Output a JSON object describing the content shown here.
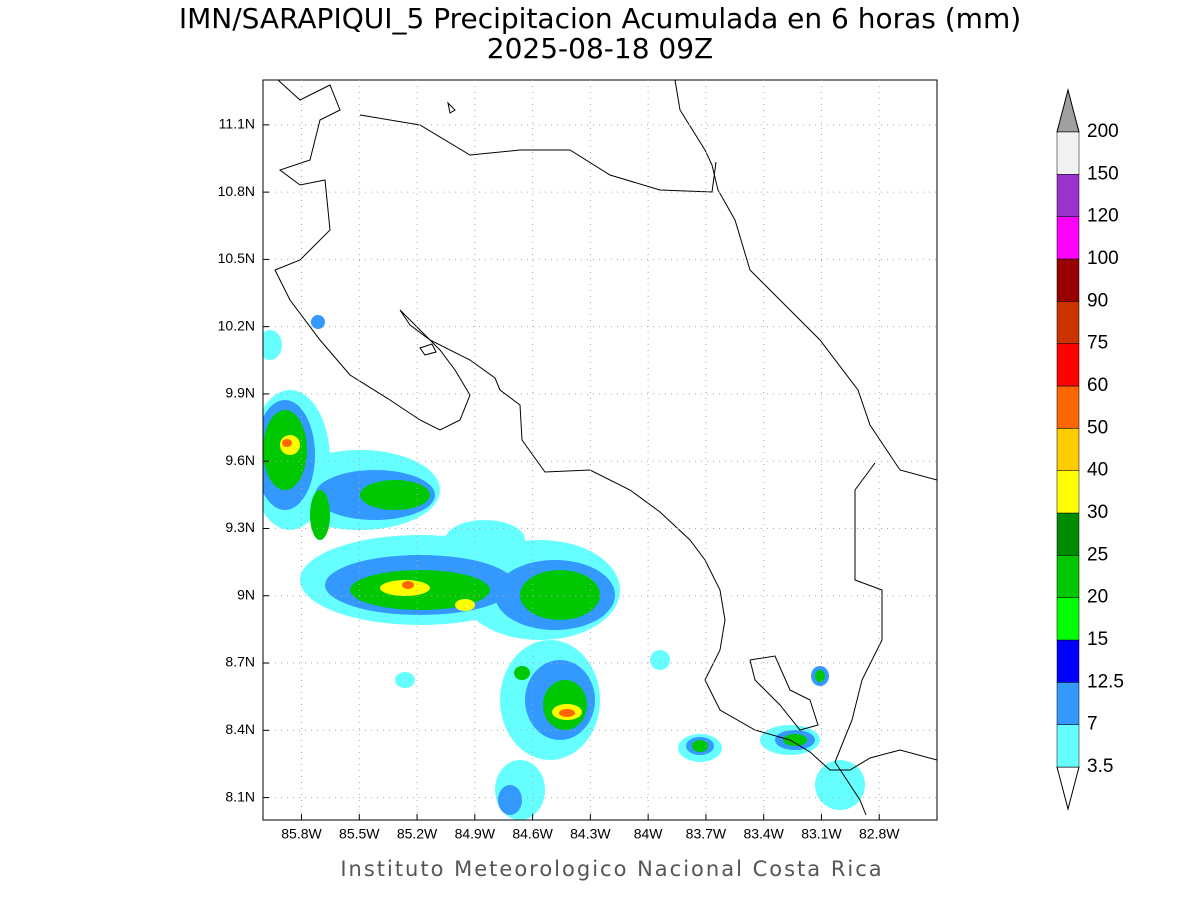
{
  "title": "IMN/SARAPIQUI_5 Precipitacion Acumulada en 6 horas (mm)",
  "subtitle": "2025-08-18 09Z",
  "footer": "Instituto Meteorologico Nacional Costa Rica",
  "map": {
    "xlim": [
      -86.0,
      -82.5
    ],
    "ylim": [
      8.0,
      11.3
    ],
    "grid": true,
    "xticks": [
      {
        "value": -85.8,
        "label": "85.8W"
      },
      {
        "value": -85.5,
        "label": "85.5W"
      },
      {
        "value": -85.2,
        "label": "85.2W"
      },
      {
        "value": -84.9,
        "label": "84.9W"
      },
      {
        "value": -84.6,
        "label": "84.6W"
      },
      {
        "value": -84.3,
        "label": "84.3W"
      },
      {
        "value": -84.0,
        "label": "84W"
      },
      {
        "value": -83.7,
        "label": "83.7W"
      },
      {
        "value": -83.4,
        "label": "83.4W"
      },
      {
        "value": -83.1,
        "label": "83.1W"
      },
      {
        "value": -82.8,
        "label": "82.8W"
      }
    ],
    "yticks": [
      {
        "value": 11.1,
        "label": "11.1N"
      },
      {
        "value": 10.8,
        "label": "10.8N"
      },
      {
        "value": 10.5,
        "label": "10.5N"
      },
      {
        "value": 10.2,
        "label": "10.2N"
      },
      {
        "value": 9.9,
        "label": "9.9N"
      },
      {
        "value": 9.6,
        "label": "9.6N"
      },
      {
        "value": 9.3,
        "label": "9.3N"
      },
      {
        "value": 9.0,
        "label": "9N"
      },
      {
        "value": 8.7,
        "label": "8.7N"
      },
      {
        "value": 8.4,
        "label": "8.4N"
      },
      {
        "value": 8.1,
        "label": "8.1N"
      }
    ]
  },
  "colorbar": {
    "levels": [
      3.5,
      7,
      12.5,
      15,
      20,
      25,
      30,
      40,
      50,
      60,
      75,
      90,
      100,
      120,
      150,
      200
    ],
    "colors": [
      "#66ffff",
      "#3399ff",
      "#0000ff",
      "#00ff00",
      "#00c800",
      "#008c00",
      "#ffff00",
      "#ffcc00",
      "#ff6600",
      "#ff0000",
      "#cc3300",
      "#990000",
      "#ff00ff",
      "#9933cc",
      "#f2f2f2"
    ],
    "under_color": "#ffffff",
    "over_color": "#a0a0a0"
  }
}
